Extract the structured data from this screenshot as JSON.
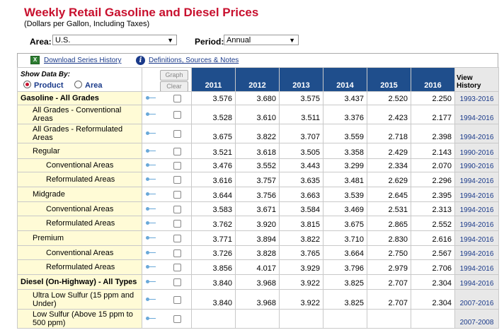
{
  "header": {
    "title": "Weekly Retail Gasoline and Diesel Prices",
    "subtitle": "(Dollars per Gallon, Including Taxes)"
  },
  "filters": {
    "area_label": "Area:",
    "area_value": "U.S.",
    "period_label": "Period:",
    "period_value": "Annual"
  },
  "toolbar": {
    "download_label": "Download Series History",
    "definitions_label": "Definitions, Sources & Notes"
  },
  "table": {
    "show_by_label": "Show Data By:",
    "radio_product": "Product",
    "radio_area": "Area",
    "graph_button": "Graph",
    "clear_button": "Clear",
    "years": [
      "2011",
      "2012",
      "2013",
      "2014",
      "2015",
      "2016"
    ],
    "view_history_label_1": "View",
    "view_history_label_2": "History",
    "rows": [
      {
        "name": "Gasoline - All Grades",
        "values": [
          "3.576",
          "3.680",
          "3.575",
          "3.437",
          "2.520",
          "2.250"
        ],
        "history": "1993-2016"
      },
      {
        "name1": "All Grades - Conventional",
        "name2": "Areas",
        "values": [
          "3.528",
          "3.610",
          "3.511",
          "3.376",
          "2.423",
          "2.177"
        ],
        "history": "1994-2016"
      },
      {
        "name1": "All Grades - Reformulated",
        "name2": "Areas",
        "values": [
          "3.675",
          "3.822",
          "3.707",
          "3.559",
          "2.718",
          "2.398"
        ],
        "history": "1994-2016"
      },
      {
        "name": "Regular",
        "values": [
          "3.521",
          "3.618",
          "3.505",
          "3.358",
          "2.429",
          "2.143"
        ],
        "history": "1990-2016"
      },
      {
        "name": "Conventional Areas",
        "values": [
          "3.476",
          "3.552",
          "3.443",
          "3.299",
          "2.334",
          "2.070"
        ],
        "history": "1990-2016"
      },
      {
        "name": "Reformulated Areas",
        "values": [
          "3.616",
          "3.757",
          "3.635",
          "3.481",
          "2.629",
          "2.296"
        ],
        "history": "1994-2016"
      },
      {
        "name": "Midgrade",
        "values": [
          "3.644",
          "3.756",
          "3.663",
          "3.539",
          "2.645",
          "2.395"
        ],
        "history": "1994-2016"
      },
      {
        "name": "Conventional Areas",
        "values": [
          "3.583",
          "3.671",
          "3.584",
          "3.469",
          "2.531",
          "2.313"
        ],
        "history": "1994-2016"
      },
      {
        "name": "Reformulated Areas",
        "values": [
          "3.762",
          "3.920",
          "3.815",
          "3.675",
          "2.865",
          "2.552"
        ],
        "history": "1994-2016"
      },
      {
        "name": "Premium",
        "values": [
          "3.771",
          "3.894",
          "3.822",
          "3.710",
          "2.830",
          "2.616"
        ],
        "history": "1994-2016"
      },
      {
        "name": "Conventional Areas",
        "values": [
          "3.726",
          "3.828",
          "3.765",
          "3.664",
          "2.750",
          "2.567"
        ],
        "history": "1994-2016"
      },
      {
        "name": "Reformulated Areas",
        "values": [
          "3.856",
          "4.017",
          "3.929",
          "3.796",
          "2.979",
          "2.706"
        ],
        "history": "1994-2016"
      },
      {
        "name": "Diesel (On-Highway) - All Types",
        "values": [
          "3.840",
          "3.968",
          "3.922",
          "3.825",
          "2.707",
          "2.304"
        ],
        "history": "1994-2016"
      },
      {
        "name1": "Ultra Low Sulfur (15 ppm and",
        "name2": "Under)",
        "values": [
          "3.840",
          "3.968",
          "3.922",
          "3.825",
          "2.707",
          "2.304"
        ],
        "history": "2007-2016"
      },
      {
        "name1": "Low Sulfur (Above 15 ppm to",
        "name2": "500 ppm)",
        "values": [
          "",
          "",
          "",
          "",
          "",
          ""
        ],
        "history": "2007-2008"
      }
    ]
  }
}
